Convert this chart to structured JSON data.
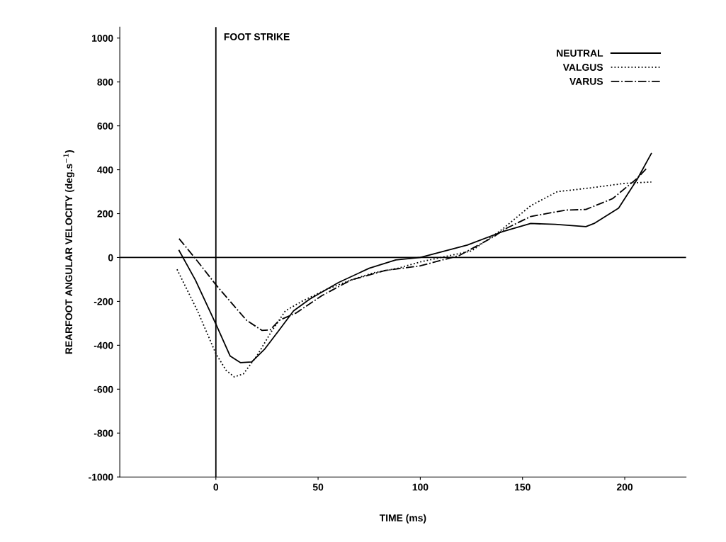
{
  "chart_data": {
    "type": "line",
    "xlabel": "TIME (ms)",
    "ylabel": "REARFOOT ANGULAR VELOCITY (deg.s$^{−1}$)",
    "xlim": [
      -47,
      230
    ],
    "ylim": [
      -1000,
      1050
    ],
    "xticks": [
      0,
      50,
      100,
      150,
      200
    ],
    "yticks": [
      -1000,
      -800,
      -600,
      -400,
      -200,
      0,
      200,
      400,
      600,
      800,
      1000
    ],
    "grid": false,
    "legend": "top right",
    "ref_lines": [
      {
        "axis": "x",
        "value": 0,
        "label": "FOOT STRIKE"
      },
      {
        "axis": "y",
        "value": 0
      }
    ],
    "series": [
      {
        "name": "NEUTRAL",
        "color": "#000000",
        "line_style": "solid",
        "x": [
          -18,
          -10,
          0,
          7,
          12,
          17.5,
          24,
          31,
          38,
          46,
          60,
          75,
          88,
          100,
          123,
          140,
          154,
          166,
          181,
          185,
          197,
          206,
          213
        ],
        "values": [
          32,
          -103,
          -303,
          -449,
          -479,
          -476,
          -416,
          -330,
          -243,
          -189,
          -114,
          -49,
          -11,
          0,
          57,
          117,
          155,
          151,
          141,
          155,
          225,
          355,
          474
        ]
      },
      {
        "name": "VALGUS",
        "color": "#000000",
        "line_style": "dotted",
        "x": [
          -19,
          -9,
          0,
          5,
          9,
          13.5,
          20,
          27,
          34,
          42,
          54,
          66,
          77,
          89,
          100,
          125,
          140,
          154,
          167,
          183,
          200,
          213
        ],
        "values": [
          -54,
          -243,
          -438,
          -514,
          -544,
          -530,
          -449,
          -340,
          -243,
          -200,
          -146,
          -103,
          -70,
          -49,
          -20,
          30,
          128,
          236,
          300,
          317,
          338,
          344
        ]
      },
      {
        "name": "VARUS",
        "color": "#000000",
        "line_style": "dashdot",
        "x": [
          -18,
          -10,
          0,
          6,
          15,
          22.5,
          26.5,
          31,
          39,
          52,
          66,
          83,
          100,
          119,
          136,
          141,
          154,
          171,
          181,
          194,
          206,
          211
        ],
        "values": [
          86,
          -5,
          -124,
          -189,
          -286,
          -332,
          -330,
          -286,
          -254,
          -173,
          -103,
          -59,
          -38,
          9,
          95,
          128,
          187,
          216,
          219,
          268,
          360,
          409
        ]
      }
    ]
  }
}
